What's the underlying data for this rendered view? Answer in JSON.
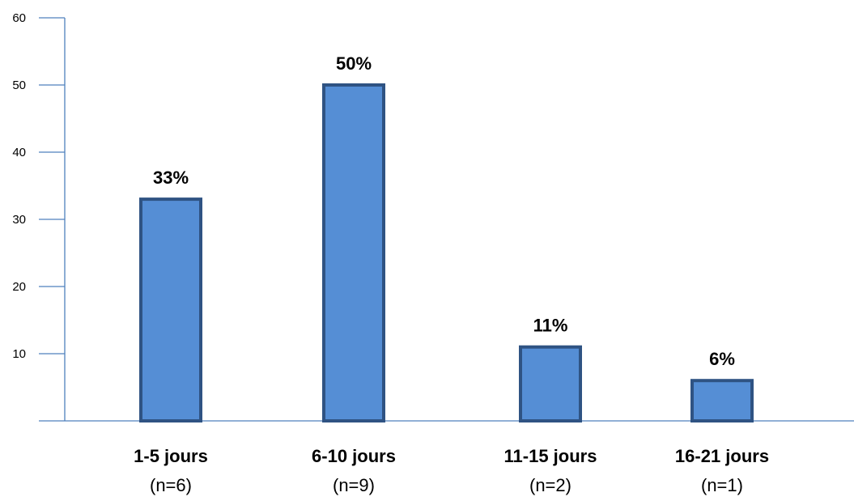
{
  "chart_data": {
    "type": "bar",
    "categories": [
      "1-5 jours",
      "6-10 jours",
      "11-15 jours",
      "16-21 jours"
    ],
    "category_sublabels": [
      "(n=6)",
      "(n=9)",
      "(n=2)",
      "(n=1)"
    ],
    "values": [
      33,
      50,
      11,
      6
    ],
    "data_labels": [
      "33%",
      "50%",
      "11%",
      "6%"
    ],
    "yticks": [
      10,
      20,
      30,
      40,
      50,
      60
    ],
    "ylim": [
      0,
      60
    ],
    "grid": false,
    "legend": "none",
    "title": "",
    "xlabel": "",
    "ylabel": "",
    "colors": {
      "bar_fill": "#558ED5",
      "bar_stroke": "#2F5383",
      "axis": "#4F81BD"
    }
  }
}
